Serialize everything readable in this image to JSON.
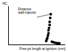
{
  "chart_data": {
    "type": "scatter",
    "y_label": "HC",
    "x_label": "Free jet length at ignition (mm)",
    "annotation": "Distance wall-injector",
    "x": [
      66,
      67,
      68,
      69,
      70,
      70,
      71,
      72,
      72,
      73,
      74,
      76,
      78,
      80,
      83,
      86,
      89
    ],
    "values": [
      10,
      14,
      18,
      24,
      30,
      38,
      44,
      52,
      60,
      70,
      80,
      8,
      7,
      6,
      5,
      4,
      4
    ],
    "color": "#000000",
    "marker": "circle",
    "xlim": [
      0,
      100
    ],
    "ylim": [
      0,
      100
    ],
    "xticks": [],
    "yticks": [],
    "tick_labels": false,
    "grid": false
  }
}
